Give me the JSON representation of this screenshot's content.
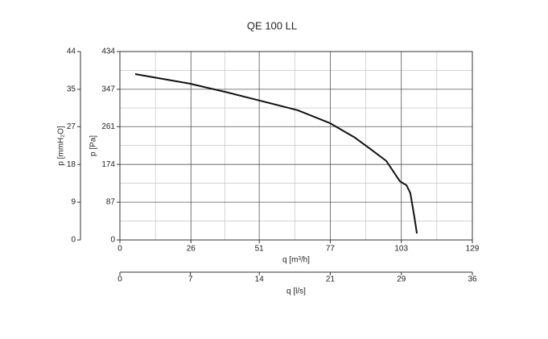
{
  "chart_data": {
    "type": "line",
    "title": "QE 100 LL",
    "x_label": "q [m³/h]",
    "y_label": "p [Pa]",
    "y2_label": "p [mmH₂O]",
    "x2_label": "q [l/s]",
    "x": [
      5.6,
      25.6,
      38.6,
      51.2,
      65,
      76.9,
      85.7,
      91.6,
      97.5,
      102.5,
      104.9,
      106.3,
      107.8,
      108.7
    ],
    "series": [
      {
        "name": "QE 100 LL",
        "color": "#111111",
        "values": [
          382,
          360,
          341,
          321,
          299,
          269,
          237,
          210,
          182,
          135,
          126,
          108,
          52,
          15
        ]
      }
    ],
    "xlim": [
      0,
      129
    ],
    "xticks": [
      0,
      26,
      51,
      77,
      103,
      129
    ],
    "ylim": [
      0,
      434
    ],
    "yticks": [
      0,
      87,
      174,
      261,
      347,
      434
    ],
    "y2lim": [
      0,
      44.26
    ],
    "y2ticks": [
      0,
      {
        "value": 8.87,
        "label": "9"
      },
      {
        "value": 17.74,
        "label": "18"
      },
      {
        "value": 26.6,
        "label": "27"
      },
      {
        "value": 35.38,
        "label": "35"
      },
      {
        "value": 44.26,
        "label": "44"
      }
    ],
    "x2lim": [
      0,
      35.83
    ],
    "x2ticks": [
      0,
      {
        "value": 7.17,
        "label": "7"
      },
      {
        "value": 14.17,
        "label": "14"
      },
      {
        "value": 21.39,
        "label": "21"
      },
      {
        "value": 28.61,
        "label": "29"
      },
      {
        "value": 35.83,
        "label": "36"
      }
    ],
    "grid": true,
    "minor_grid": true
  }
}
